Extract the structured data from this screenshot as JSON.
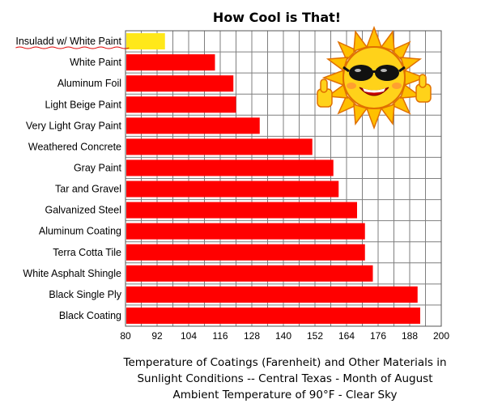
{
  "chart_data": {
    "type": "bar",
    "orientation": "horizontal",
    "title": "How Cool is That!",
    "xlabel": [
      "Temperature of Coatings (Farenheit) and Other Materials in",
      "Sunlight Conditions -- Central Texas - Month of August",
      "Ambient Temperature of 90°F - Clear Sky"
    ],
    "categories": [
      "Insuladd w/ White Paint",
      "White Paint",
      "Aluminum Foil",
      "Light Beige Paint",
      "Very Light Gray Paint",
      "Weathered Concrete",
      "Gray Paint",
      "Tar and Gravel",
      "Galvanized Steel",
      "Aluminum Coating",
      "Terra Cotta Tile",
      "White Asphalt Shingle",
      "Black Single Ply",
      "Black Coating"
    ],
    "values": [
      95,
      114,
      121,
      122,
      131,
      151,
      159,
      161,
      168,
      171,
      171,
      174,
      191,
      192
    ],
    "bar_colors": [
      "#ffe81a",
      "#ff0000",
      "#ff0000",
      "#ff0000",
      "#ff0000",
      "#ff0000",
      "#ff0000",
      "#ff0000",
      "#ff0000",
      "#ff0000",
      "#ff0000",
      "#ff0000",
      "#ff0000",
      "#ff0000"
    ],
    "xlim": [
      80,
      200
    ],
    "xticks": [
      80,
      92,
      104,
      116,
      128,
      140,
      152,
      164,
      176,
      188,
      200
    ],
    "grid": true,
    "highlight_underline_color": "#e00000",
    "decoration": "sun-with-sunglasses-icon"
  }
}
